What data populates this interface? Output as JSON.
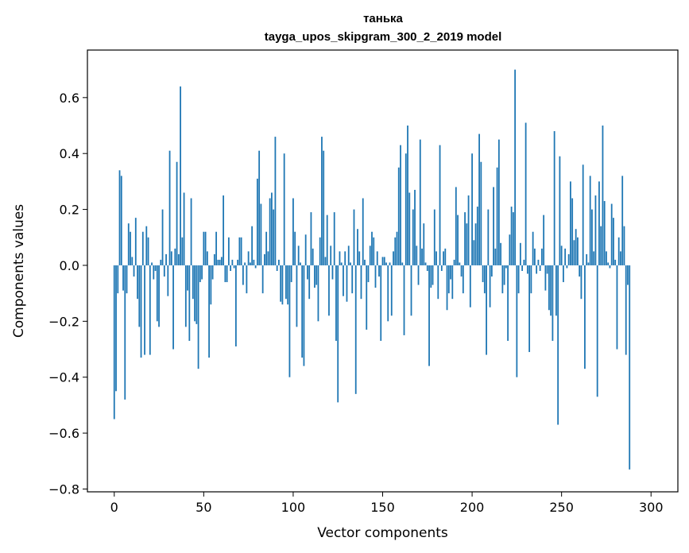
{
  "chart_data": {
    "type": "bar",
    "title": "танька",
    "subtitle": "tayga_upos_skipgram_300_2_2019 model",
    "xlabel": "Vector components",
    "ylabel": "Components values",
    "xlim": [
      -15,
      315
    ],
    "ylim": [
      -0.81,
      0.77
    ],
    "xticks": [
      0,
      50,
      100,
      150,
      200,
      250,
      300
    ],
    "yticks": [
      -0.8,
      -0.6,
      -0.4,
      -0.2,
      0.0,
      0.2,
      0.4,
      0.6
    ],
    "ytick_labels": [
      "−0.8",
      "−0.6",
      "−0.4",
      "−0.2",
      "0.0",
      "0.2",
      "0.4",
      "0.6"
    ],
    "bar_color": "#1f77b4",
    "grid": false,
    "values": [
      -0.55,
      -0.45,
      -0.1,
      0.34,
      0.32,
      -0.09,
      -0.48,
      -0.1,
      0.15,
      0.12,
      0.03,
      -0.04,
      0.17,
      -0.12,
      -0.22,
      -0.33,
      0.12,
      -0.32,
      0.14,
      0.1,
      -0.32,
      0.01,
      -0.05,
      -0.02,
      -0.2,
      -0.22,
      0.02,
      0.2,
      -0.04,
      0.04,
      -0.11,
      0.41,
      0.05,
      -0.3,
      0.06,
      0.37,
      0.04,
      0.64,
      0.1,
      0.26,
      -0.22,
      -0.09,
      -0.27,
      0.24,
      -0.12,
      -0.2,
      -0.21,
      -0.37,
      -0.06,
      -0.05,
      0.12,
      0.12,
      0.05,
      -0.33,
      -0.14,
      -0.05,
      0.04,
      0.12,
      0.02,
      0.02,
      0.03,
      0.25,
      -0.06,
      -0.06,
      0.1,
      -0.02,
      0.02,
      -0.01,
      -0.29,
      0.02,
      0.1,
      0.1,
      -0.07,
      0.01,
      -0.1,
      0.05,
      0.01,
      0.14,
      0.02,
      -0.01,
      0.31,
      0.41,
      0.22,
      -0.1,
      0.04,
      0.12,
      0.05,
      0.24,
      0.26,
      0.2,
      0.46,
      -0.02,
      0.02,
      -0.13,
      -0.14,
      0.4,
      -0.12,
      -0.14,
      -0.4,
      -0.06,
      0.24,
      0.12,
      -0.22,
      0.07,
      0.01,
      -0.33,
      -0.36,
      0.11,
      -0.05,
      -0.12,
      0.19,
      0.06,
      -0.08,
      -0.07,
      -0.2,
      0.1,
      0.46,
      0.41,
      0.03,
      0.18,
      -0.18,
      0.07,
      -0.05,
      0.19,
      -0.27,
      -0.49,
      0.05,
      0.01,
      -0.11,
      0.05,
      -0.13,
      0.07,
      0.01,
      -0.1,
      0.2,
      -0.46,
      0.13,
      0.05,
      -0.12,
      0.24,
      0.02,
      -0.23,
      -0.06,
      0.07,
      0.12,
      0.1,
      -0.08,
      0.05,
      -0.04,
      -0.27,
      0.03,
      0.03,
      0.01,
      -0.2,
      0.01,
      -0.18,
      0.05,
      0.1,
      0.12,
      0.35,
      0.43,
      0.01,
      -0.25,
      0.4,
      0.5,
      0.26,
      -0.18,
      0.2,
      0.27,
      0.07,
      -0.07,
      0.45,
      0.06,
      0.15,
      0.01,
      -0.02,
      -0.36,
      -0.08,
      -0.07,
      0.2,
      0.05,
      -0.12,
      0.43,
      -0.02,
      0.05,
      0.06,
      -0.16,
      -0.1,
      -0.05,
      -0.12,
      0.02,
      0.28,
      0.18,
      0.01,
      -0.04,
      -0.1,
      0.19,
      0.15,
      0.25,
      -0.15,
      0.4,
      0.09,
      0.15,
      0.21,
      0.47,
      0.37,
      -0.06,
      -0.1,
      -0.32,
      0.2,
      -0.15,
      -0.04,
      0.28,
      0.06,
      0.35,
      0.45,
      0.08,
      -0.1,
      -0.07,
      -0.01,
      -0.27,
      0.11,
      0.21,
      0.19,
      0.7,
      -0.4,
      -0.1,
      0.08,
      -0.02,
      0.02,
      0.51,
      -0.03,
      -0.31,
      -0.1,
      0.12,
      0.06,
      -0.03,
      0.02,
      -0.02,
      0.06,
      0.18,
      -0.09,
      -0.03,
      -0.16,
      -0.18,
      -0.27,
      0.48,
      -0.18,
      -0.57,
      0.39,
      0.07,
      -0.06,
      0.06,
      -0.01,
      0.04,
      0.3,
      0.24,
      0.09,
      0.13,
      0.1,
      -0.04,
      -0.12,
      0.36,
      -0.37,
      0.04,
      0.01,
      0.32,
      0.2,
      0.05,
      0.25,
      -0.47,
      0.3,
      0.14,
      0.5,
      0.23,
      0.05,
      0.01,
      -0.01,
      0.22,
      0.17,
      0.02,
      -0.3,
      0.1,
      0.05,
      0.32,
      0.14,
      -0.32,
      -0.07,
      -0.73
    ]
  }
}
